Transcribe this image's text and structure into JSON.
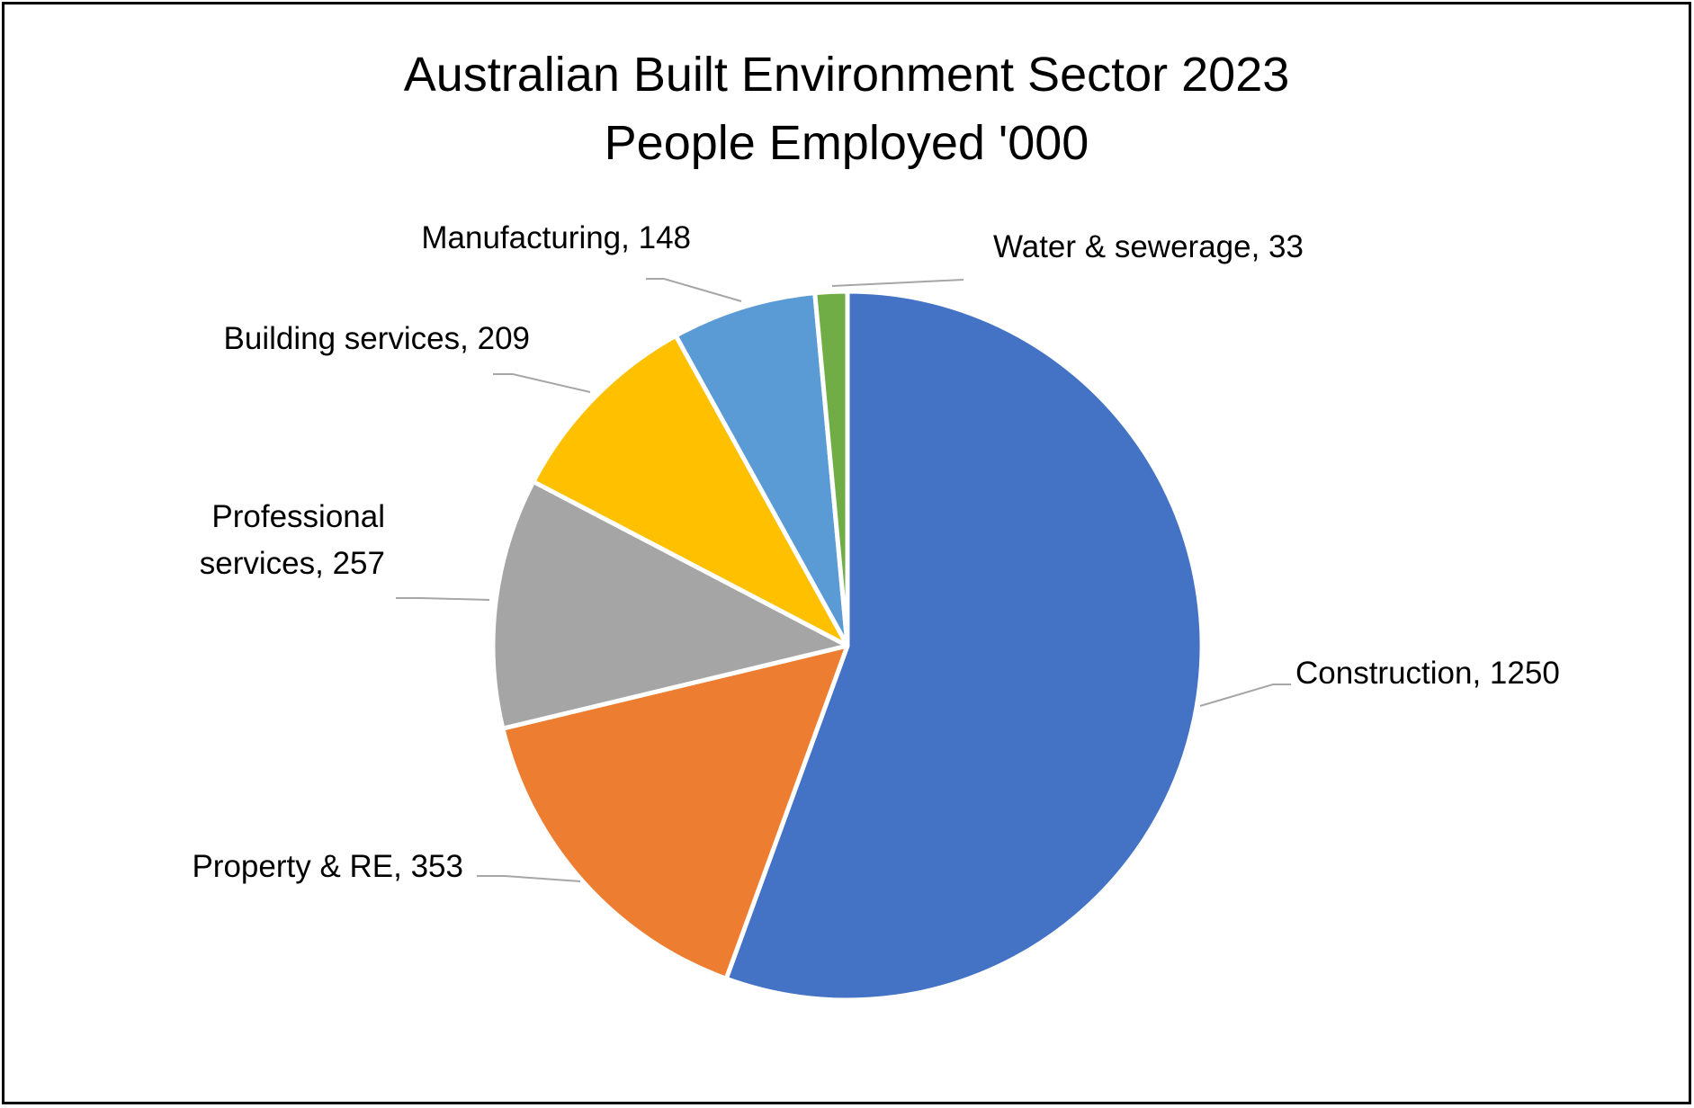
{
  "chart_data": {
    "type": "pie",
    "title_lines": [
      "Australian Built Environment Sector 2023",
      "People Employed '000"
    ],
    "slices": [
      {
        "name": "Construction",
        "value": 1250,
        "color": "#4472C4"
      },
      {
        "name": "Property & RE",
        "value": 353,
        "color": "#ED7D31"
      },
      {
        "name": "Professional services",
        "value": 257,
        "color": "#A5A5A5"
      },
      {
        "name": "Building services",
        "value": 209,
        "color": "#FFC000"
      },
      {
        "name": "Manufacturing",
        "value": 148,
        "color": "#5B9BD5"
      },
      {
        "name": "Water & sewerage",
        "value": 33,
        "color": "#70AD47"
      }
    ],
    "labels": [
      {
        "lines": [
          "Construction, 1250"
        ]
      },
      {
        "lines": [
          "Property & RE, 353"
        ]
      },
      {
        "lines": [
          "Professional",
          "services, 257"
        ]
      },
      {
        "lines": [
          "Building services, 209"
        ]
      },
      {
        "lines": [
          "Manufacturing, 148"
        ]
      },
      {
        "lines": [
          "Water & sewerage, 33"
        ]
      }
    ],
    "start_angle_deg": 0,
    "direction": "clockwise",
    "leader_line_color": "#A6A6A6"
  }
}
